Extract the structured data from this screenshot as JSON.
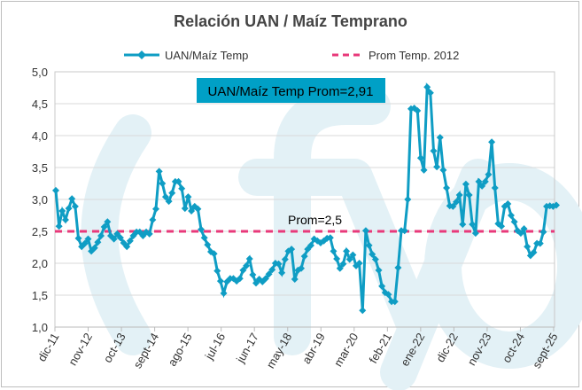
{
  "chart_data": {
    "type": "line",
    "title": "Relación UAN / Maíz Temprano",
    "xlabel": "",
    "ylabel": "",
    "ylim": [
      1.0,
      5.0
    ],
    "yticks": [
      "1,0",
      "1,5",
      "2,0",
      "2,5",
      "3,0",
      "3,5",
      "4,0",
      "4,5",
      "5,0"
    ],
    "ytick_values": [
      1.0,
      1.5,
      2.0,
      2.5,
      3.0,
      3.5,
      4.0,
      4.5,
      5.0
    ],
    "xtick_labels": [
      "dic-11",
      "nov-12",
      "oct-13",
      "sept-14",
      "ago-15",
      "jul-16",
      "jun-17",
      "may-18",
      "abr-19",
      "mar-20",
      "feb-21",
      "ene-22",
      "dic-22",
      "nov-23",
      "oct-24",
      "sept-25"
    ],
    "x_span_months": 165,
    "grid": true,
    "legend_position": "top",
    "series": [
      {
        "name": "UAN/Maíz Temp",
        "color": "#0f9dc4",
        "marker": "diamond",
        "values": [
          3.14,
          2.58,
          2.82,
          2.68,
          2.86,
          3.01,
          2.89,
          2.39,
          2.26,
          2.31,
          2.38,
          2.19,
          2.24,
          2.33,
          2.43,
          2.57,
          2.65,
          2.43,
          2.38,
          2.46,
          2.4,
          2.32,
          2.26,
          2.35,
          2.43,
          2.49,
          2.49,
          2.43,
          2.49,
          2.46,
          2.68,
          2.85,
          3.44,
          3.25,
          3.04,
          2.97,
          3.1,
          3.28,
          3.28,
          3.17,
          2.86,
          3.04,
          2.82,
          2.89,
          2.85,
          2.53,
          2.4,
          2.29,
          2.18,
          2.15,
          1.88,
          1.72,
          1.53,
          1.71,
          1.76,
          1.76,
          1.72,
          1.76,
          1.89,
          1.96,
          2.07,
          1.82,
          1.69,
          1.75,
          1.71,
          1.76,
          1.83,
          1.9,
          2.0,
          1.99,
          1.85,
          2.06,
          2.19,
          2.22,
          1.75,
          1.89,
          1.92,
          2.11,
          2.22,
          2.28,
          2.38,
          2.35,
          2.32,
          2.35,
          2.39,
          2.4,
          2.19,
          2.07,
          1.92,
          1.99,
          2.19,
          2.06,
          2.13,
          1.96,
          2.0,
          1.26,
          2.51,
          2.28,
          2.14,
          2.06,
          1.89,
          1.64,
          1.54,
          1.51,
          1.4,
          1.4,
          1.93,
          2.51,
          2.51,
          3.0,
          4.42,
          4.43,
          4.39,
          3.65,
          3.46,
          4.76,
          4.67,
          3.76,
          3.51,
          3.97,
          3.46,
          3.18,
          2.9,
          2.89,
          2.96,
          3.07,
          2.61,
          3.24,
          3.07,
          2.61,
          2.47,
          3.28,
          3.21,
          3.28,
          3.39,
          3.9,
          3.18,
          2.62,
          2.58,
          2.89,
          2.93,
          2.75,
          2.65,
          2.51,
          2.47,
          2.54,
          2.26,
          2.12,
          2.17,
          2.31,
          2.31,
          2.49,
          2.89,
          2.9,
          2.89,
          2.91
        ]
      },
      {
        "name": "Prom Temp. 2012",
        "color": "#e8397a",
        "style": "dashed",
        "constant": 2.5
      }
    ],
    "annotations": {
      "avg_box": "UAN/Maíz Temp Prom=2,91",
      "avg_box_color": "#00a0c6",
      "ref_label": "Prom=2,5"
    },
    "watermark": "(fyo"
  }
}
